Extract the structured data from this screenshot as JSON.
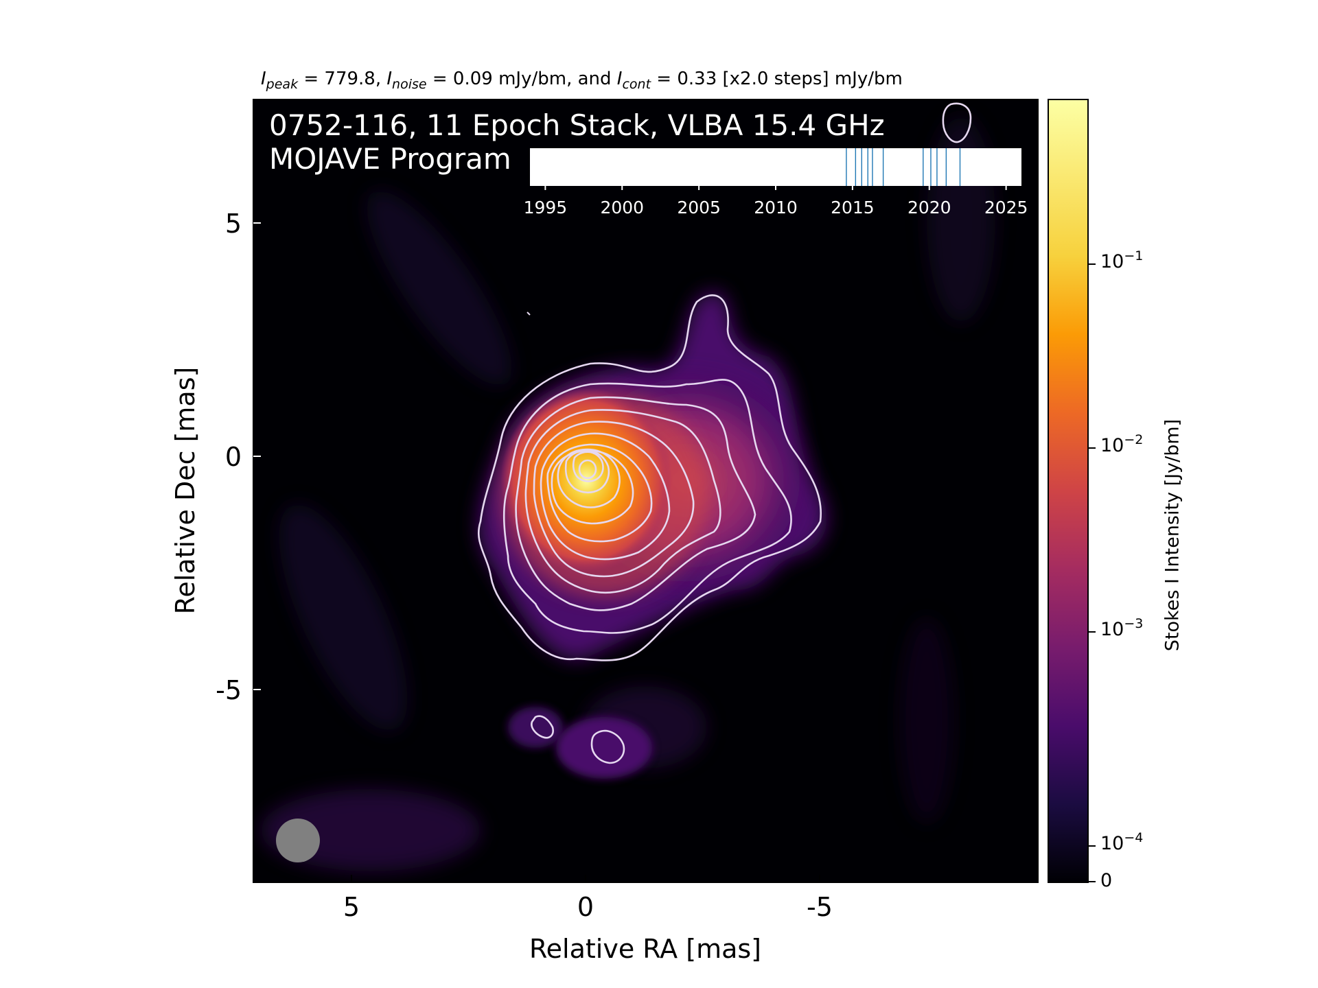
{
  "chart_data": {
    "type": "heatmap",
    "title_parts": {
      "peak_sub": "peak",
      "peak_value": "779.8",
      "noise_sub": "noise",
      "noise_value": "0.09 mJy/bm",
      "cont_sub": "cont",
      "cont_value": "0.33 [x2.0 steps] mJy/bm",
      "and_text": "and"
    },
    "overlay": {
      "line1": "0752-116, 11 Epoch Stack, VLBA 15.4 GHz",
      "line2": "MOJAVE Program"
    },
    "xlabel": "Relative RA [mas]",
    "ylabel": "Relative Dec [mas]",
    "x_ticks": [
      "5",
      "0",
      "-5"
    ],
    "y_ticks": [
      "5",
      "0",
      "-5"
    ],
    "xlim": [
      7.1,
      -9.7
    ],
    "ylim": [
      -9.2,
      7.6
    ],
    "colorbar": {
      "label": "Stokes I Intensity [Jy/bm]",
      "colormap": "inferno",
      "scale": "log",
      "tick_labels": [
        {
          "base": "10",
          "exp": "−1"
        },
        {
          "base": "10",
          "exp": "−2"
        },
        {
          "base": "10",
          "exp": "−3"
        },
        {
          "base": "10",
          "exp": "−4"
        },
        {
          "base": "0",
          "exp": ""
        }
      ]
    },
    "epoch_timeline": {
      "tick_labels": [
        "1995",
        "2000",
        "2005",
        "2010",
        "2015",
        "2020",
        "2025"
      ],
      "range": [
        1994,
        2026
      ],
      "epochs": [
        2014.6,
        2015.2,
        2015.6,
        2016.0,
        2016.3,
        2017.0,
        2019.6,
        2020.1,
        2020.5,
        2021.1,
        2022.0
      ],
      "line_color": "#1f77b4"
    },
    "contour_color": "#e6d8f0",
    "beam": {
      "color": "#808080"
    },
    "source_core": {
      "ra": 0.0,
      "dec": -0.2
    }
  }
}
